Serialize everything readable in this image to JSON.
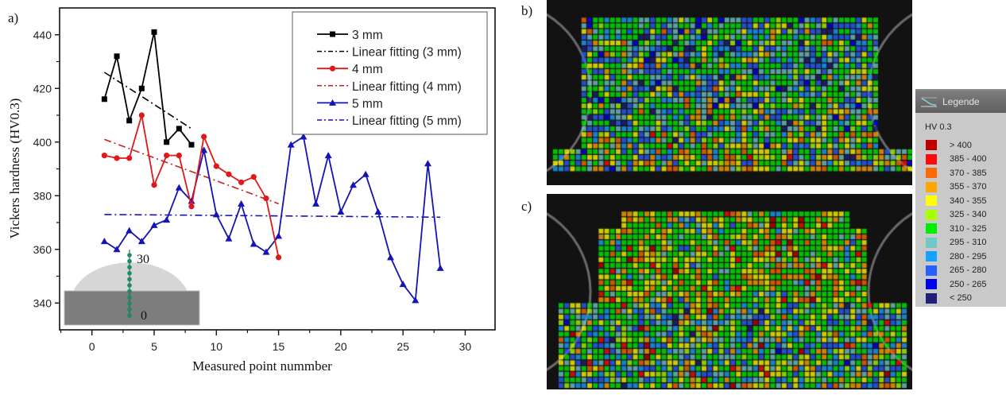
{
  "panels": {
    "a_label": "a)",
    "b_label": "b)",
    "c_label": "c)"
  },
  "chart_data": {
    "type": "line",
    "title": "",
    "xlabel": "Measured point nummber",
    "ylabel": "Vickers hardness (HV0.3)",
    "xlim": [
      -2.6,
      32.4
    ],
    "ylim": [
      330,
      450
    ],
    "xticks": [
      0,
      5,
      10,
      15,
      20,
      25,
      30
    ],
    "yticks": [
      340,
      360,
      380,
      400,
      420,
      440
    ],
    "grid": false,
    "legend_position": "top-right",
    "series": [
      {
        "name": "3 mm",
        "color": "#000000",
        "marker": "square",
        "x": [
          1,
          2,
          3,
          4,
          5,
          6,
          7,
          8
        ],
        "values": [
          416,
          432,
          408,
          420,
          441,
          400,
          405,
          399
        ]
      },
      {
        "name": "Linear fitting (3 mm)",
        "color": "#000000",
        "style": "dash-dot",
        "x": [
          1,
          8
        ],
        "values": [
          426,
          405
        ]
      },
      {
        "name": "4 mm",
        "color": "#e01818",
        "marker": "circle",
        "x": [
          1,
          2,
          3,
          4,
          5,
          6,
          7,
          8,
          9,
          10,
          11,
          12,
          13,
          14,
          15
        ],
        "values": [
          395,
          394,
          394,
          410,
          384,
          395,
          395,
          376,
          402,
          391,
          388,
          385,
          387,
          379,
          357
        ]
      },
      {
        "name": "Linear fitting (4 mm)",
        "color": "#c82020",
        "style": "dash-dot",
        "x": [
          1,
          15
        ],
        "values": [
          401,
          377
        ]
      },
      {
        "name": "5 mm",
        "color": "#1414b4",
        "marker": "triangle",
        "x": [
          1,
          2,
          3,
          4,
          5,
          6,
          7,
          8,
          9,
          10,
          11,
          12,
          13,
          14,
          15,
          16,
          17,
          18,
          19,
          20,
          21,
          22,
          23,
          24,
          25,
          26,
          27,
          28
        ],
        "values": [
          363,
          360,
          367,
          363,
          369,
          371,
          383,
          378,
          397,
          373,
          364,
          377,
          362,
          359,
          365,
          399,
          402,
          377,
          395,
          374,
          384,
          388,
          374,
          357,
          347,
          341,
          392,
          353
        ]
      },
      {
        "name": "Linear fitting (5 mm)",
        "color": "#1414b4",
        "style": "dash-dot",
        "x": [
          1,
          28
        ],
        "values": [
          373,
          372
        ]
      }
    ],
    "inset": {
      "label_top": "30",
      "label_bottom": "0",
      "dot_color": "#1f8a6a"
    }
  },
  "hardness_legend": {
    "title": "Legende",
    "unit": "HV 0.3",
    "items": [
      {
        "label": "> 400",
        "color": "#c00000"
      },
      {
        "label": "385 - 400",
        "color": "#ff0a0a"
      },
      {
        "label": "370 - 385",
        "color": "#ff6a00"
      },
      {
        "label": "355 - 370",
        "color": "#ffa500"
      },
      {
        "label": "340 - 355",
        "color": "#ffff00"
      },
      {
        "label": "325 - 340",
        "color": "#a8ff00"
      },
      {
        "label": "310 - 325",
        "color": "#00ee00"
      },
      {
        "label": "295 - 310",
        "color": "#70c8c8"
      },
      {
        "label": "280 - 295",
        "color": "#18a0ff"
      },
      {
        "label": "265 - 280",
        "color": "#2860ff"
      },
      {
        "label": "250 - 265",
        "color": "#0000f0"
      },
      {
        "label": "< 250",
        "color": "#20207a"
      }
    ]
  }
}
